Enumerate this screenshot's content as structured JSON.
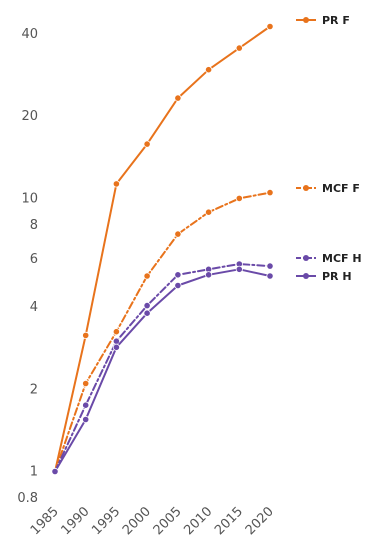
{
  "chart_data": {
    "type": "line",
    "title": "",
    "xlabel": "",
    "ylabel": "",
    "y_scale": "log",
    "ylim": [
      0.8,
      45
    ],
    "x": [
      1985,
      1990,
      1995,
      2000,
      2005,
      2010,
      2015,
      2020
    ],
    "x_tick_labels": [
      "1985",
      "1990",
      "1995",
      "2000",
      "2005",
      "2010",
      "2015",
      "2020"
    ],
    "y_ticks": [
      0.8,
      1,
      2,
      4,
      6,
      8,
      10,
      20,
      40
    ],
    "y_tick_labels": [
      "0.8",
      "1",
      "2",
      "4",
      "6",
      "8",
      "10",
      "20",
      "40"
    ],
    "grid": false,
    "legend_placement": "right, beside line ends",
    "series": [
      {
        "name": "PR F",
        "color": "#e8731c",
        "line_style": "solid",
        "values": [
          1,
          3.15,
          11.3,
          15.8,
          23.3,
          29.6,
          35.5,
          42.6
        ]
      },
      {
        "name": "MCF F",
        "color": "#e8731c",
        "line_style": "dash-dot",
        "values": [
          1,
          2.1,
          3.25,
          5.2,
          7.4,
          8.9,
          10.0,
          10.5
        ]
      },
      {
        "name": "MCF H",
        "color": "#6a4aa8",
        "line_style": "dash-dot",
        "values": [
          1,
          1.75,
          3.0,
          4.05,
          5.25,
          5.5,
          5.75,
          5.65
        ]
      },
      {
        "name": "PR H",
        "color": "#6a4aa8",
        "line_style": "solid",
        "values": [
          1,
          1.55,
          2.85,
          3.8,
          4.8,
          5.25,
          5.5,
          5.2
        ]
      }
    ]
  }
}
